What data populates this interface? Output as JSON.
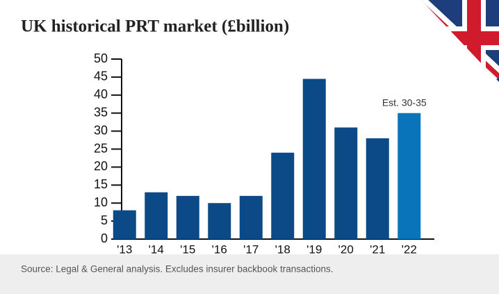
{
  "chart_data": {
    "type": "bar",
    "title": "UK historical PRT market (£billion)",
    "categories": [
      "'13",
      "'14",
      "'15",
      "'16",
      "'17",
      "'18",
      "'19",
      "'20",
      "'21",
      "'22"
    ],
    "values": [
      8,
      13,
      12,
      10,
      12,
      24,
      44.5,
      31,
      28,
      35
    ],
    "colors": [
      "#0b4a86",
      "#0b4a86",
      "#0b4a86",
      "#0b4a86",
      "#0b4a86",
      "#0b4a86",
      "#0b4a86",
      "#0b4a86",
      "#0b4a86",
      "#0a74bb"
    ],
    "annotation": "Est. 30-35",
    "ylim": [
      0,
      50
    ],
    "yticks": [
      0,
      5,
      10,
      15,
      20,
      25,
      30,
      35,
      40,
      45,
      50
    ],
    "grid": false,
    "source": "Source: Legal & General analysis. Excludes insurer backbook transactions."
  }
}
